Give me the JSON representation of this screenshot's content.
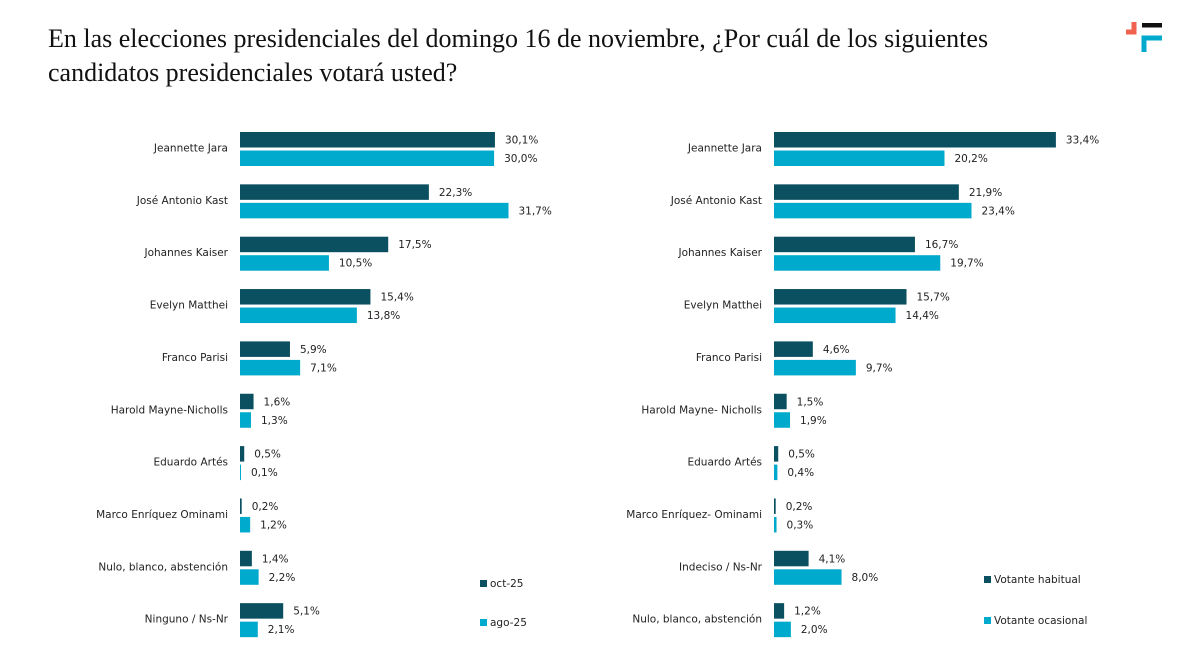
{
  "title": "En las elecciones presidenciales del domingo 16 de noviembre, ¿Por cuál de los siguientes candidatos presidenciales votará usted?",
  "colors": {
    "dark": "#0b5061",
    "light": "#00aacd",
    "logo_red": "#f0624d",
    "logo_black": "#111111",
    "logo_blue": "#00aacd"
  },
  "chart_data": [
    {
      "type": "bar",
      "orientation": "horizontal",
      "categories": [
        "Jeannette Jara",
        "José Antonio Kast",
        "Johannes Kaiser",
        "Evelyn Matthei",
        "Franco Parisi",
        "Harold Mayne-Nicholls",
        "Eduardo Artés",
        "Marco Enríquez Ominami",
        "Nulo, blanco, abstención",
        "Ninguno / Ns-Nr"
      ],
      "series": [
        {
          "name": "oct-25",
          "color": "#0b5061",
          "values": [
            30.1,
            22.3,
            17.5,
            15.4,
            5.9,
            1.6,
            0.5,
            0.2,
            1.4,
            5.1
          ],
          "labels": [
            "30,1%",
            "22,3%",
            "17,5%",
            "15,4%",
            "5,9%",
            "1,6%",
            "0,5%",
            "0,2%",
            "1,4%",
            "5,1%"
          ]
        },
        {
          "name": "ago-25",
          "color": "#00aacd",
          "values": [
            30.0,
            31.7,
            10.5,
            13.8,
            7.1,
            1.3,
            0.1,
            1.2,
            2.2,
            2.1
          ],
          "labels": [
            "30,0%",
            "31,7%",
            "10,5%",
            "13,8%",
            "7,1%",
            "1,3%",
            "0,1%",
            "1,2%",
            "2,2%",
            "2,1%"
          ]
        }
      ],
      "legend": "bottom-right",
      "grid": false
    },
    {
      "type": "bar",
      "orientation": "horizontal",
      "categories": [
        "Jeannette Jara",
        "José Antonio Kast",
        "Johannes Kaiser",
        "Evelyn Matthei",
        "Franco Parisi",
        "Harold Mayne- Nicholls",
        "Eduardo Artés",
        "Marco Enríquez- Ominami",
        "Indeciso / Ns-Nr",
        "Nulo, blanco, abstención"
      ],
      "series": [
        {
          "name": "Votante habitual",
          "color": "#0b5061",
          "values": [
            33.4,
            21.9,
            16.7,
            15.7,
            4.6,
            1.5,
            0.5,
            0.2,
            4.1,
            1.2
          ],
          "labels": [
            "33,4%",
            "21,9%",
            "16,7%",
            "15,7%",
            "4,6%",
            "1,5%",
            "0,5%",
            "0,2%",
            "4,1%",
            "1,2%"
          ]
        },
        {
          "name": "Votante ocasional",
          "color": "#00aacd",
          "values": [
            20.2,
            23.4,
            19.7,
            14.4,
            9.7,
            1.9,
            0.4,
            0.3,
            8.0,
            2.0
          ],
          "labels": [
            "20,2%",
            "23,4%",
            "19,7%",
            "14,4%",
            "9,7%",
            "1,9%",
            "0,4%",
            "0,3%",
            "8,0%",
            "2,0%"
          ]
        }
      ],
      "legend": "bottom-right",
      "grid": false
    }
  ]
}
